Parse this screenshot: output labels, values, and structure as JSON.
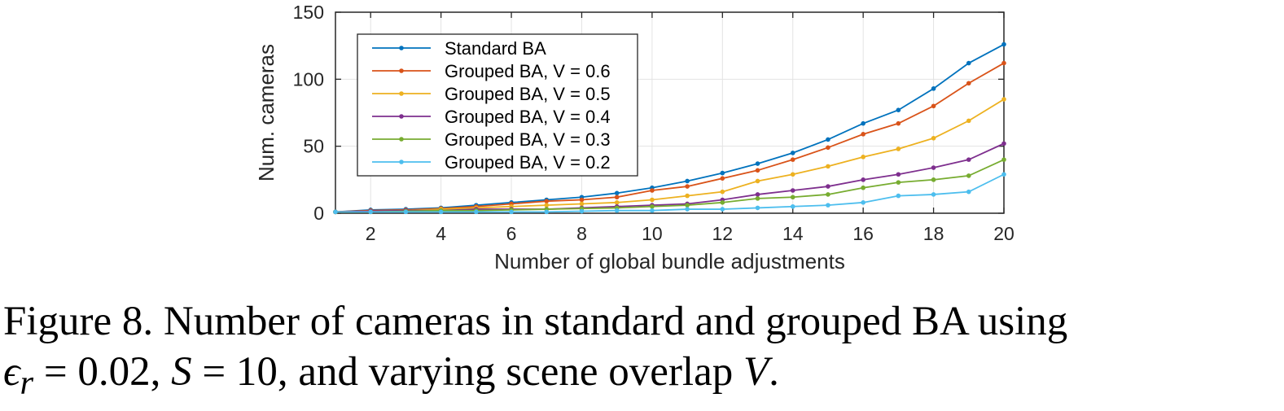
{
  "chart_data": {
    "type": "line",
    "xlabel": "Number of global bundle adjustments",
    "ylabel": "Num. cameras",
    "xlim": [
      1,
      20
    ],
    "ylim": [
      0,
      150
    ],
    "xticks": [
      2,
      4,
      6,
      8,
      10,
      12,
      14,
      16,
      18,
      20
    ],
    "yticks": [
      0,
      50,
      100,
      150
    ],
    "grid": true,
    "legend_position": "top-left",
    "x": [
      1,
      2,
      3,
      4,
      5,
      6,
      7,
      8,
      9,
      10,
      11,
      12,
      13,
      14,
      15,
      16,
      17,
      18,
      19,
      20
    ],
    "series": [
      {
        "name": "Standard BA",
        "color": "#0072bd",
        "values": [
          1,
          2.5,
          3,
          4,
          6,
          8,
          10,
          12,
          15,
          19,
          24,
          30,
          37,
          45,
          55,
          67,
          77,
          93,
          112,
          126
        ]
      },
      {
        "name": "Grouped BA, V = 0.6",
        "color": "#d95319",
        "values": [
          1,
          2,
          2.5,
          3.5,
          5,
          7,
          9,
          10,
          12,
          17,
          20,
          26,
          32,
          40,
          49,
          59,
          67,
          80,
          97,
          112
        ]
      },
      {
        "name": "Grouped BA, V = 0.5",
        "color": "#edb120",
        "values": [
          1,
          1.5,
          2,
          3,
          4,
          5,
          6,
          7,
          8,
          10,
          13,
          16,
          24,
          29,
          35,
          42,
          48,
          56,
          69,
          85
        ]
      },
      {
        "name": "Grouped BA, V = 0.4",
        "color": "#7e2f8e",
        "values": [
          1,
          1.5,
          2,
          2,
          3,
          3,
          3,
          4,
          5,
          6,
          7,
          10,
          14,
          17,
          20,
          25,
          29,
          34,
          40,
          52
        ]
      },
      {
        "name": "Grouped BA, V = 0.3",
        "color": "#77ac30",
        "values": [
          1,
          1,
          1.5,
          2,
          2,
          2.5,
          3,
          3.5,
          4,
          5,
          6,
          8,
          11,
          12,
          14,
          19,
          23,
          25,
          28,
          40
        ]
      },
      {
        "name": "Grouped BA, V = 0.2",
        "color": "#4dbeee",
        "values": [
          1,
          1,
          1,
          1,
          1,
          1,
          1,
          1.5,
          2,
          2,
          3,
          3,
          4,
          5,
          6,
          8,
          13,
          14,
          16,
          29
        ]
      }
    ]
  },
  "caption": {
    "line1": "Figure 8. Number of cameras in standard and grouped BA using",
    "eps": "ϵ",
    "eps_sub": "r",
    "eq1": " = 0.02, ",
    "S": "S",
    "eq2": " = 10, and varying scene overlap ",
    "V": "V",
    "end": "."
  }
}
